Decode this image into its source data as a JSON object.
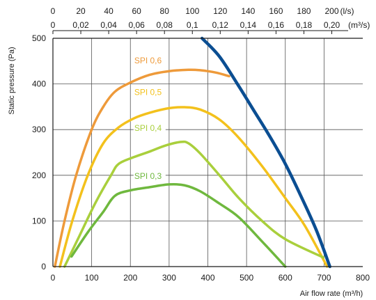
{
  "chart_data": {
    "type": "line",
    "xlabel": "Air flow rate (m³/h)",
    "ylabel": "Static pressure (Pa)",
    "xlim": [
      0,
      800
    ],
    "ylim": [
      0,
      500
    ],
    "x_ticks": [
      "0",
      "100",
      "200",
      "300",
      "400",
      "500",
      "600",
      "700",
      "800"
    ],
    "y_ticks": [
      "0",
      "100",
      "200",
      "300",
      "400",
      "500"
    ],
    "grid": true,
    "top_axis_m3s": {
      "label": "(m³/s)",
      "ticks": [
        {
          "value": 0,
          "label": "0"
        },
        {
          "value": 0.02,
          "label": "0,02"
        },
        {
          "value": 0.04,
          "label": "0,04"
        },
        {
          "value": 0.06,
          "label": "0,06"
        },
        {
          "value": 0.08,
          "label": "0,08"
        },
        {
          "value": 0.1,
          "label": "0,1"
        },
        {
          "value": 0.12,
          "label": "0,12"
        },
        {
          "value": 0.14,
          "label": "0,14"
        },
        {
          "value": 0.16,
          "label": "0,16"
        },
        {
          "value": 0.18,
          "label": "0,18"
        },
        {
          "value": 0.2,
          "label": "0,20"
        }
      ]
    },
    "top_axis_ls": {
      "label": "(l/s)",
      "ticks": [
        {
          "value": 0,
          "label": "0"
        },
        {
          "value": 20,
          "label": "20"
        },
        {
          "value": 40,
          "label": "40"
        },
        {
          "value": 60,
          "label": "60"
        },
        {
          "value": 80,
          "label": "80"
        },
        {
          "value": 100,
          "label": "100"
        },
        {
          "value": 120,
          "label": "120"
        },
        {
          "value": 140,
          "label": "140"
        },
        {
          "value": 160,
          "label": "160"
        },
        {
          "value": 180,
          "label": "180"
        },
        {
          "value": 200,
          "label": "200"
        }
      ]
    },
    "series": [
      {
        "name": "SPI 0,6",
        "color": "#EE9A3A",
        "x": [
          5,
          30,
          60,
          100,
          130,
          160,
          200,
          250,
          300,
          350,
          380,
          420,
          455
        ],
        "y": [
          0,
          100,
          200,
          300,
          350,
          383,
          403,
          420,
          428,
          431,
          430,
          425,
          417
        ]
      },
      {
        "name": "SPI 0,5",
        "color": "#F3C11C",
        "x": [
          18,
          50,
          90,
          130,
          170,
          210,
          250,
          300,
          340,
          380,
          430,
          480,
          540,
          600,
          650,
          708
        ],
        "y": [
          0,
          100,
          200,
          270,
          305,
          325,
          337,
          347,
          349,
          344,
          322,
          282,
          220,
          150,
          90,
          0
        ]
      },
      {
        "name": "SPI 0,4",
        "color": "#A9CF3C",
        "x": [
          30,
          70,
          110,
          150,
          170,
          210,
          250,
          290,
          330,
          350,
          380,
          430,
          480,
          540,
          600,
          698
        ],
        "y": [
          0,
          70,
          140,
          200,
          225,
          240,
          252,
          265,
          273,
          270,
          248,
          200,
          150,
          100,
          60,
          20
        ]
      },
      {
        "name": "SPI 0,3",
        "color": "#6FB83E",
        "x": [
          48,
          90,
          130,
          160,
          200,
          250,
          300,
          340,
          380,
          430,
          480,
          540,
          600
        ],
        "y": [
          22,
          75,
          120,
          155,
          167,
          174,
          180,
          178,
          165,
          138,
          108,
          55,
          0
        ]
      },
      {
        "name": "",
        "color": "#0B4E92",
        "x": [
          385,
          430,
          480,
          520,
          560,
          600,
          640,
          680,
          715
        ],
        "y": [
          500,
          460,
          395,
          340,
          285,
          225,
          155,
          80,
          0
        ]
      }
    ],
    "series_labels": [
      {
        "text": "SPI 0,6",
        "color": "#EE9A3A",
        "x": 210,
        "y": 445
      },
      {
        "text": "SPI 0,5",
        "color": "#F3C11C",
        "x": 210,
        "y": 376
      },
      {
        "text": "SPI 0,4",
        "color": "#A9CF3C",
        "x": 210,
        "y": 297
      },
      {
        "text": "SPI 0,3",
        "color": "#6FB83E",
        "x": 210,
        "y": 192
      }
    ]
  }
}
